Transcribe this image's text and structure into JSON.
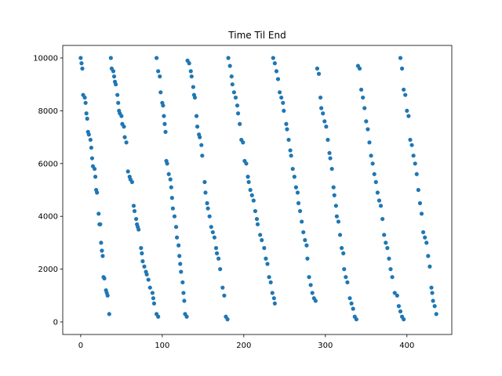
{
  "chart_data": {
    "type": "scatter",
    "title": "Time Til End",
    "color": "#1f77b4",
    "x": [
      0,
      1,
      2,
      3,
      5,
      6,
      7,
      8,
      9,
      10,
      12,
      13,
      14,
      15,
      17,
      18,
      19,
      20,
      22,
      23,
      24,
      25,
      26,
      27,
      28,
      29,
      31,
      32,
      33,
      35,
      37,
      38,
      40,
      41,
      42,
      43,
      45,
      46,
      47,
      48,
      50,
      51,
      53,
      54,
      56,
      58,
      60,
      61,
      63,
      65,
      66,
      68,
      69,
      70,
      71,
      74,
      75,
      76,
      78,
      80,
      81,
      83,
      85,
      88,
      89,
      90,
      93,
      95,
      93,
      95,
      97,
      98,
      100,
      101,
      102,
      103,
      104,
      105,
      106,
      108,
      110,
      111,
      112,
      113,
      115,
      117,
      118,
      120,
      121,
      122,
      123,
      125,
      126,
      127,
      128,
      130,
      131,
      133,
      135,
      136,
      138,
      139,
      140,
      142,
      143,
      145,
      146,
      148,
      149,
      152,
      153,
      155,
      156,
      158,
      160,
      162,
      164,
      166,
      167,
      169,
      171,
      174,
      176,
      178,
      180,
      181,
      183,
      185,
      186,
      188,
      190,
      192,
      193,
      195,
      197,
      199,
      201,
      203,
      205,
      206,
      208,
      210,
      212,
      214,
      216,
      217,
      220,
      222,
      225,
      227,
      229,
      231,
      233,
      235,
      237,
      238,
      236,
      238,
      240,
      242,
      244,
      246,
      248,
      249,
      252,
      253,
      255,
      257,
      258,
      260,
      262,
      264,
      266,
      267,
      269,
      271,
      273,
      275,
      277,
      278,
      280,
      282,
      284,
      286,
      288,
      290,
      292,
      294,
      295,
      297,
      299,
      301,
      303,
      305,
      306,
      308,
      310,
      311,
      313,
      314,
      316,
      318,
      320,
      322,
      323,
      325,
      327,
      330,
      332,
      334,
      336,
      338,
      340,
      342,
      344,
      346,
      348,
      350,
      352,
      354,
      356,
      358,
      360,
      362,
      364,
      366,
      368,
      370,
      372,
      374,
      376,
      378,
      380,
      382,
      385,
      388,
      390,
      392,
      394,
      396,
      392,
      394,
      396,
      398,
      400,
      402,
      404,
      406,
      408,
      410,
      412,
      414,
      416,
      418,
      420,
      422,
      424,
      426,
      428,
      430,
      431,
      432,
      434,
      436
    ],
    "values": [
      10000,
      9800,
      9600,
      8600,
      8500,
      8300,
      7900,
      7700,
      7200,
      7100,
      6900,
      6600,
      6200,
      5900,
      5800,
      5500,
      5000,
      4900,
      4100,
      3700,
      3700,
      3000,
      2700,
      2500,
      1700,
      1650,
      1200,
      1100,
      1000,
      300,
      10000,
      9600,
      9500,
      9300,
      9100,
      9000,
      8600,
      8300,
      8000,
      7900,
      7800,
      7500,
      7400,
      7000,
      6800,
      5700,
      5500,
      5400,
      5300,
      4400,
      4200,
      3900,
      3700,
      3600,
      3500,
      2800,
      2600,
      2300,
      2100,
      1900,
      1800,
      1600,
      1300,
      1100,
      900,
      700,
      300,
      200,
      10000,
      9500,
      9300,
      8700,
      8300,
      8200,
      7800,
      7500,
      7200,
      6100,
      6000,
      5600,
      5400,
      5100,
      4700,
      4300,
      4000,
      3600,
      3200,
      2900,
      2500,
      2200,
      1900,
      1500,
      1100,
      800,
      300,
      200,
      9900,
      9800,
      9500,
      9300,
      8900,
      8600,
      8500,
      7800,
      7400,
      7100,
      7000,
      6700,
      6300,
      5300,
      4900,
      4500,
      4300,
      4000,
      3600,
      3400,
      3200,
      2800,
      2600,
      2400,
      2000,
      1300,
      1000,
      200,
      100,
      10000,
      9700,
      9300,
      9000,
      8700,
      8500,
      8200,
      7900,
      7500,
      6900,
      6800,
      6100,
      6000,
      5500,
      5300,
      5000,
      4800,
      4600,
      4200,
      3900,
      3700,
      3300,
      3100,
      2800,
      2400,
      2200,
      1700,
      1500,
      1100,
      900,
      700,
      10000,
      9800,
      9500,
      9200,
      8700,
      8500,
      8300,
      8000,
      7500,
      7300,
      6900,
      6500,
      6300,
      5800,
      5500,
      5100,
      4900,
      4500,
      4200,
      3800,
      3400,
      3100,
      2900,
      2400,
      1700,
      1400,
      1100,
      900,
      800,
      9600,
      9400,
      8500,
      8100,
      7900,
      7600,
      7400,
      6900,
      6400,
      6200,
      5800,
      5100,
      4800,
      4400,
      4000,
      3800,
      3300,
      2800,
      2600,
      2000,
      1700,
      1500,
      900,
      700,
      500,
      200,
      100,
      9700,
      9600,
      8800,
      8500,
      8100,
      7600,
      7300,
      6800,
      6300,
      6000,
      5600,
      5300,
      4900,
      4600,
      4400,
      3900,
      3300,
      3000,
      2800,
      2400,
      2000,
      1700,
      1100,
      1000,
      600,
      400,
      200,
      100,
      10000,
      9600,
      8800,
      8600,
      8000,
      7800,
      6900,
      6700,
      6300,
      6000,
      5600,
      5000,
      4500,
      4100,
      3400,
      3200,
      3000,
      2500,
      2100,
      1300,
      1100,
      800,
      600,
      300
    ],
    "xlim": [
      -22,
      455
    ],
    "ylim": [
      -475,
      10475
    ],
    "xticks": [
      0,
      100,
      200,
      300,
      400
    ],
    "yticks": [
      0,
      2000,
      4000,
      6000,
      8000,
      10000
    ]
  }
}
